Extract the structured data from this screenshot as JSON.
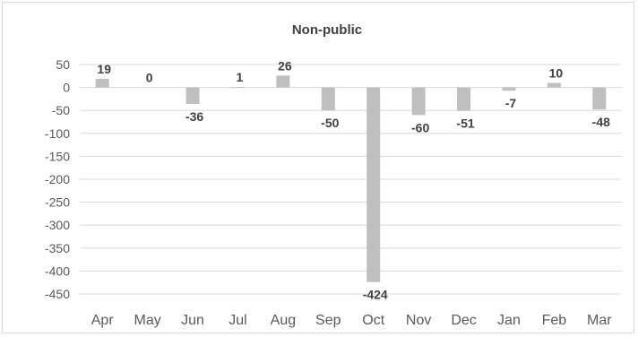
{
  "chart_data": {
    "type": "bar",
    "title": "Non-public",
    "xlabel": "",
    "ylabel": "",
    "categories": [
      "Apr",
      "May",
      "Jun",
      "Jul",
      "Aug",
      "Sep",
      "Oct",
      "Nov",
      "Dec",
      "Jan",
      "Feb",
      "Mar"
    ],
    "values": [
      19,
      0,
      -36,
      1,
      26,
      -50,
      -424,
      -60,
      -51,
      -7,
      10,
      -48
    ],
    "data_labels": [
      "19",
      "0",
      "-36",
      "1",
      "26",
      "-50",
      "-424",
      "-60",
      "-51",
      "-7",
      "10",
      "-48"
    ],
    "ylim": [
      -450,
      50
    ],
    "yticks": [
      50,
      0,
      -50,
      -100,
      -150,
      -200,
      -250,
      -300,
      -350,
      -400,
      -450
    ],
    "ytick_labels": [
      "50",
      "0",
      "-50",
      "-100",
      "-150",
      "-200",
      "-250",
      "-300",
      "-350",
      "-400",
      "-450"
    ],
    "grid": true,
    "legend": "none",
    "bar_color": "#bfbfbf",
    "grid_color": "#d9d9d9"
  }
}
